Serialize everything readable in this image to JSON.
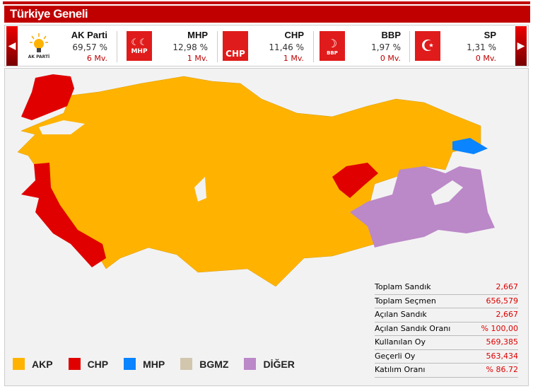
{
  "title": "Türkiye Geneli",
  "parties": [
    {
      "name": "AK Parti",
      "pct": "69,57 %",
      "mv": "6 Mv.",
      "logo_text": "AK PARTİ",
      "color": "#ffb300"
    },
    {
      "name": "MHP",
      "pct": "12,98 %",
      "mv": "1 Mv.",
      "logo_text": "MHP",
      "color": "#e01b1b"
    },
    {
      "name": "CHP",
      "pct": "11,46 %",
      "mv": "1 Mv.",
      "logo_text": "CHP",
      "color": "#e01b1b"
    },
    {
      "name": "BBP",
      "pct": "1,97 %",
      "mv": "0 Mv.",
      "logo_text": "BBP",
      "color": "#e01b1b"
    },
    {
      "name": "SP",
      "pct": "1,31 %",
      "mv": "0 Mv.",
      "logo_text": "",
      "color": "#e01b1b"
    }
  ],
  "stats": [
    {
      "label": "Toplam Sandık",
      "value": "2,667"
    },
    {
      "label": "Toplam Seçmen",
      "value": "656,579"
    },
    {
      "label": "Açılan Sandık",
      "value": "2,667"
    },
    {
      "label": "Açılan Sandık Oranı",
      "value": "% 100,00"
    },
    {
      "label": "Kullanılan Oy",
      "value": "569,385"
    },
    {
      "label": "Geçerli Oy",
      "value": "563,434"
    },
    {
      "label": "Katılım Oranı",
      "value": "% 86.72"
    }
  ],
  "legend": [
    {
      "label": "AKP",
      "color": "#ffb300"
    },
    {
      "label": "CHP",
      "color": "#e00000"
    },
    {
      "label": "MHP",
      "color": "#0a84ff"
    },
    {
      "label": "BGMZ",
      "color": "#d2c6ae"
    },
    {
      "label": "DİĞER",
      "color": "#bb88c8"
    }
  ]
}
